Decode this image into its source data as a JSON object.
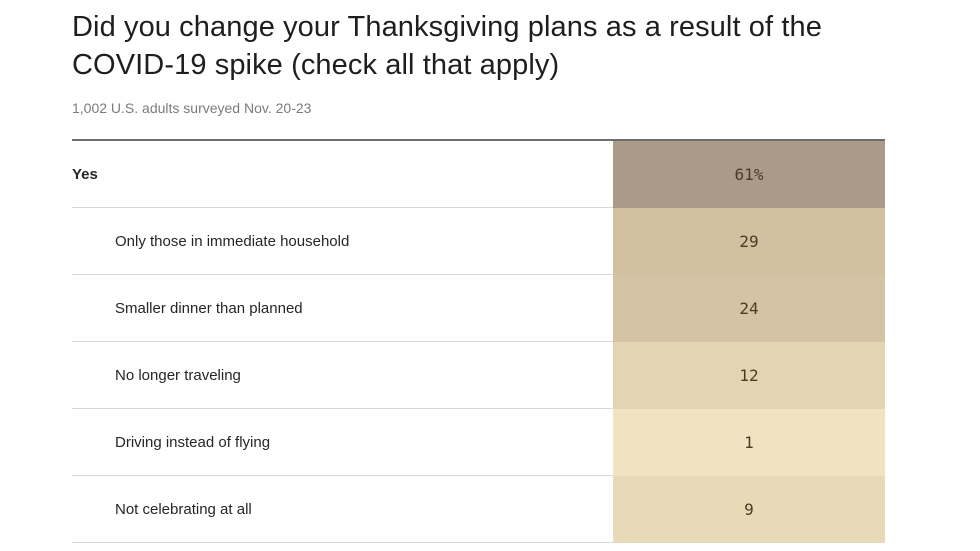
{
  "header": {
    "title": "Did you change your Thanksgiving plans as a result of the COVID-19 spike (check all that apply)",
    "subtitle": "1,002 U.S. adults surveyed Nov. 20-23"
  },
  "table": {
    "rows": [
      {
        "label": "Yes",
        "value": "61%",
        "cell_color": "#a99a8a"
      },
      {
        "label": "Only those in immediate household",
        "value": "29",
        "cell_color": "#d2c0a1"
      },
      {
        "label": "Smaller dinner than planned",
        "value": "24",
        "cell_color": "#d5c3a5"
      },
      {
        "label": "No longer traveling",
        "value": "12",
        "cell_color": "#e4d5b2"
      },
      {
        "label": "Driving instead of flying",
        "value": "1",
        "cell_color": "#f1e3c1"
      },
      {
        "label": "Not celebrating at all",
        "value": "9",
        "cell_color": "#e9dab7"
      }
    ]
  },
  "colors": {
    "title_text": "#1e1e1e",
    "subtitle_text": "#7b7b7b",
    "value_text": "#4e3a24",
    "table_top_border": "#6e6e6e",
    "row_separator": "#d9d9d9"
  },
  "chart_data": {
    "type": "table",
    "title": "Did you change your Thanksgiving plans as a result of the COVID-19 spike (check all that apply)",
    "subtitle": "1,002 U.S. adults surveyed Nov. 20-23",
    "categories": [
      "Yes",
      "Only those in immediate household",
      "Smaller dinner than planned",
      "No longer traveling",
      "Driving instead of flying",
      "Not celebrating at all"
    ],
    "values": [
      61,
      29,
      24,
      12,
      1,
      9
    ],
    "value_labels": [
      "61%",
      "29",
      "24",
      "12",
      "1",
      "9"
    ],
    "layout": "single shaded value column; sub-categories indented under Yes; cell shade intensity scales with value"
  }
}
